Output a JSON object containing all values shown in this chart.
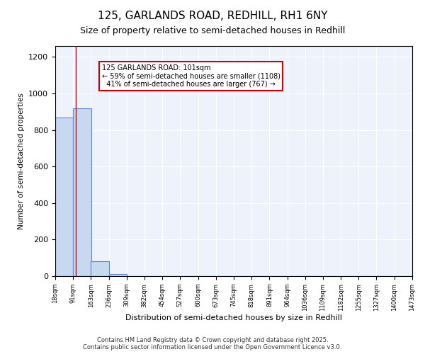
{
  "title1": "125, GARLANDS ROAD, REDHILL, RH1 6NY",
  "title2": "Size of property relative to semi-detached houses in Redhill",
  "xlabel": "Distribution of semi-detached houses by size in Redhill",
  "ylabel": "Number of semi-detached properties",
  "bin_edges": [
    18,
    91,
    163,
    236,
    309,
    382,
    454,
    527,
    600,
    673,
    745,
    818,
    891,
    964,
    1036,
    1109,
    1182,
    1255,
    1327,
    1400,
    1473
  ],
  "bar_heights": [
    870,
    920,
    80,
    10,
    0,
    0,
    0,
    0,
    0,
    0,
    0,
    0,
    0,
    0,
    0,
    0,
    0,
    0,
    0,
    0
  ],
  "bar_color": "#c8d8f0",
  "bar_edge_color": "#5588cc",
  "property_size": 101,
  "property_label": "125 GARLANDS ROAD: 101sqm",
  "pct_smaller": 59,
  "n_smaller": 1108,
  "pct_larger": 41,
  "n_larger": 767,
  "vline_color": "#cc0000",
  "ylim": [
    0,
    1260
  ],
  "yticks": [
    0,
    200,
    400,
    600,
    800,
    1000,
    1200
  ],
  "bg_color": "#eef2fb",
  "grid_color": "#ffffff",
  "annotation_box_color": "#ffffff",
  "annotation_box_edge": "#cc0000",
  "footer1": "Contains HM Land Registry data © Crown copyright and database right 2025.",
  "footer2": "Contains public sector information licensed under the Open Government Licence v3.0."
}
